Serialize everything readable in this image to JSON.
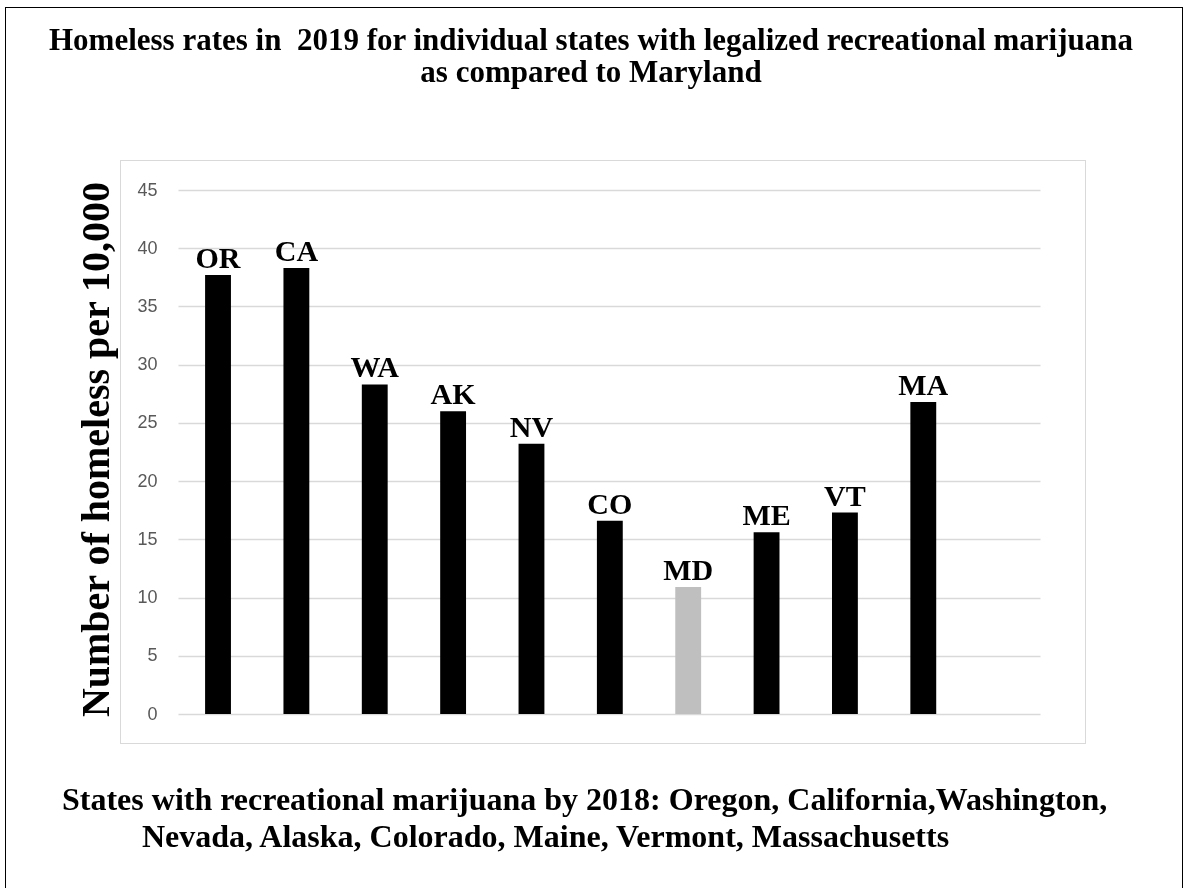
{
  "chart_data": {
    "type": "bar",
    "title": "Homeless rates in  2019 for individual states with legalized recreational marijuana as compared to Maryland",
    "ylabel": "Number of homeless per 10,000",
    "categories": [
      "OR",
      "CA",
      "WA",
      "AK",
      "NV",
      "CO",
      "MD",
      "ME",
      "VT",
      "MA"
    ],
    "values": [
      37.7,
      38.3,
      28.3,
      26.0,
      23.2,
      16.6,
      10.9,
      15.6,
      17.3,
      26.8
    ],
    "colors": [
      "#000000",
      "#000000",
      "#000000",
      "#000000",
      "#000000",
      "#000000",
      "#bfbfbf",
      "#000000",
      "#000000",
      "#000000"
    ],
    "ylim": [
      0,
      45
    ],
    "yticks": [
      0,
      5,
      10,
      15,
      20,
      25,
      30,
      35,
      40,
      45
    ],
    "grid": "y",
    "annotations": [
      "States with recreational marijuana by 2018: Oregon, California,Washington, Nevada, Alaska, Colorado, Maine, Vermont, Massachusetts"
    ]
  }
}
